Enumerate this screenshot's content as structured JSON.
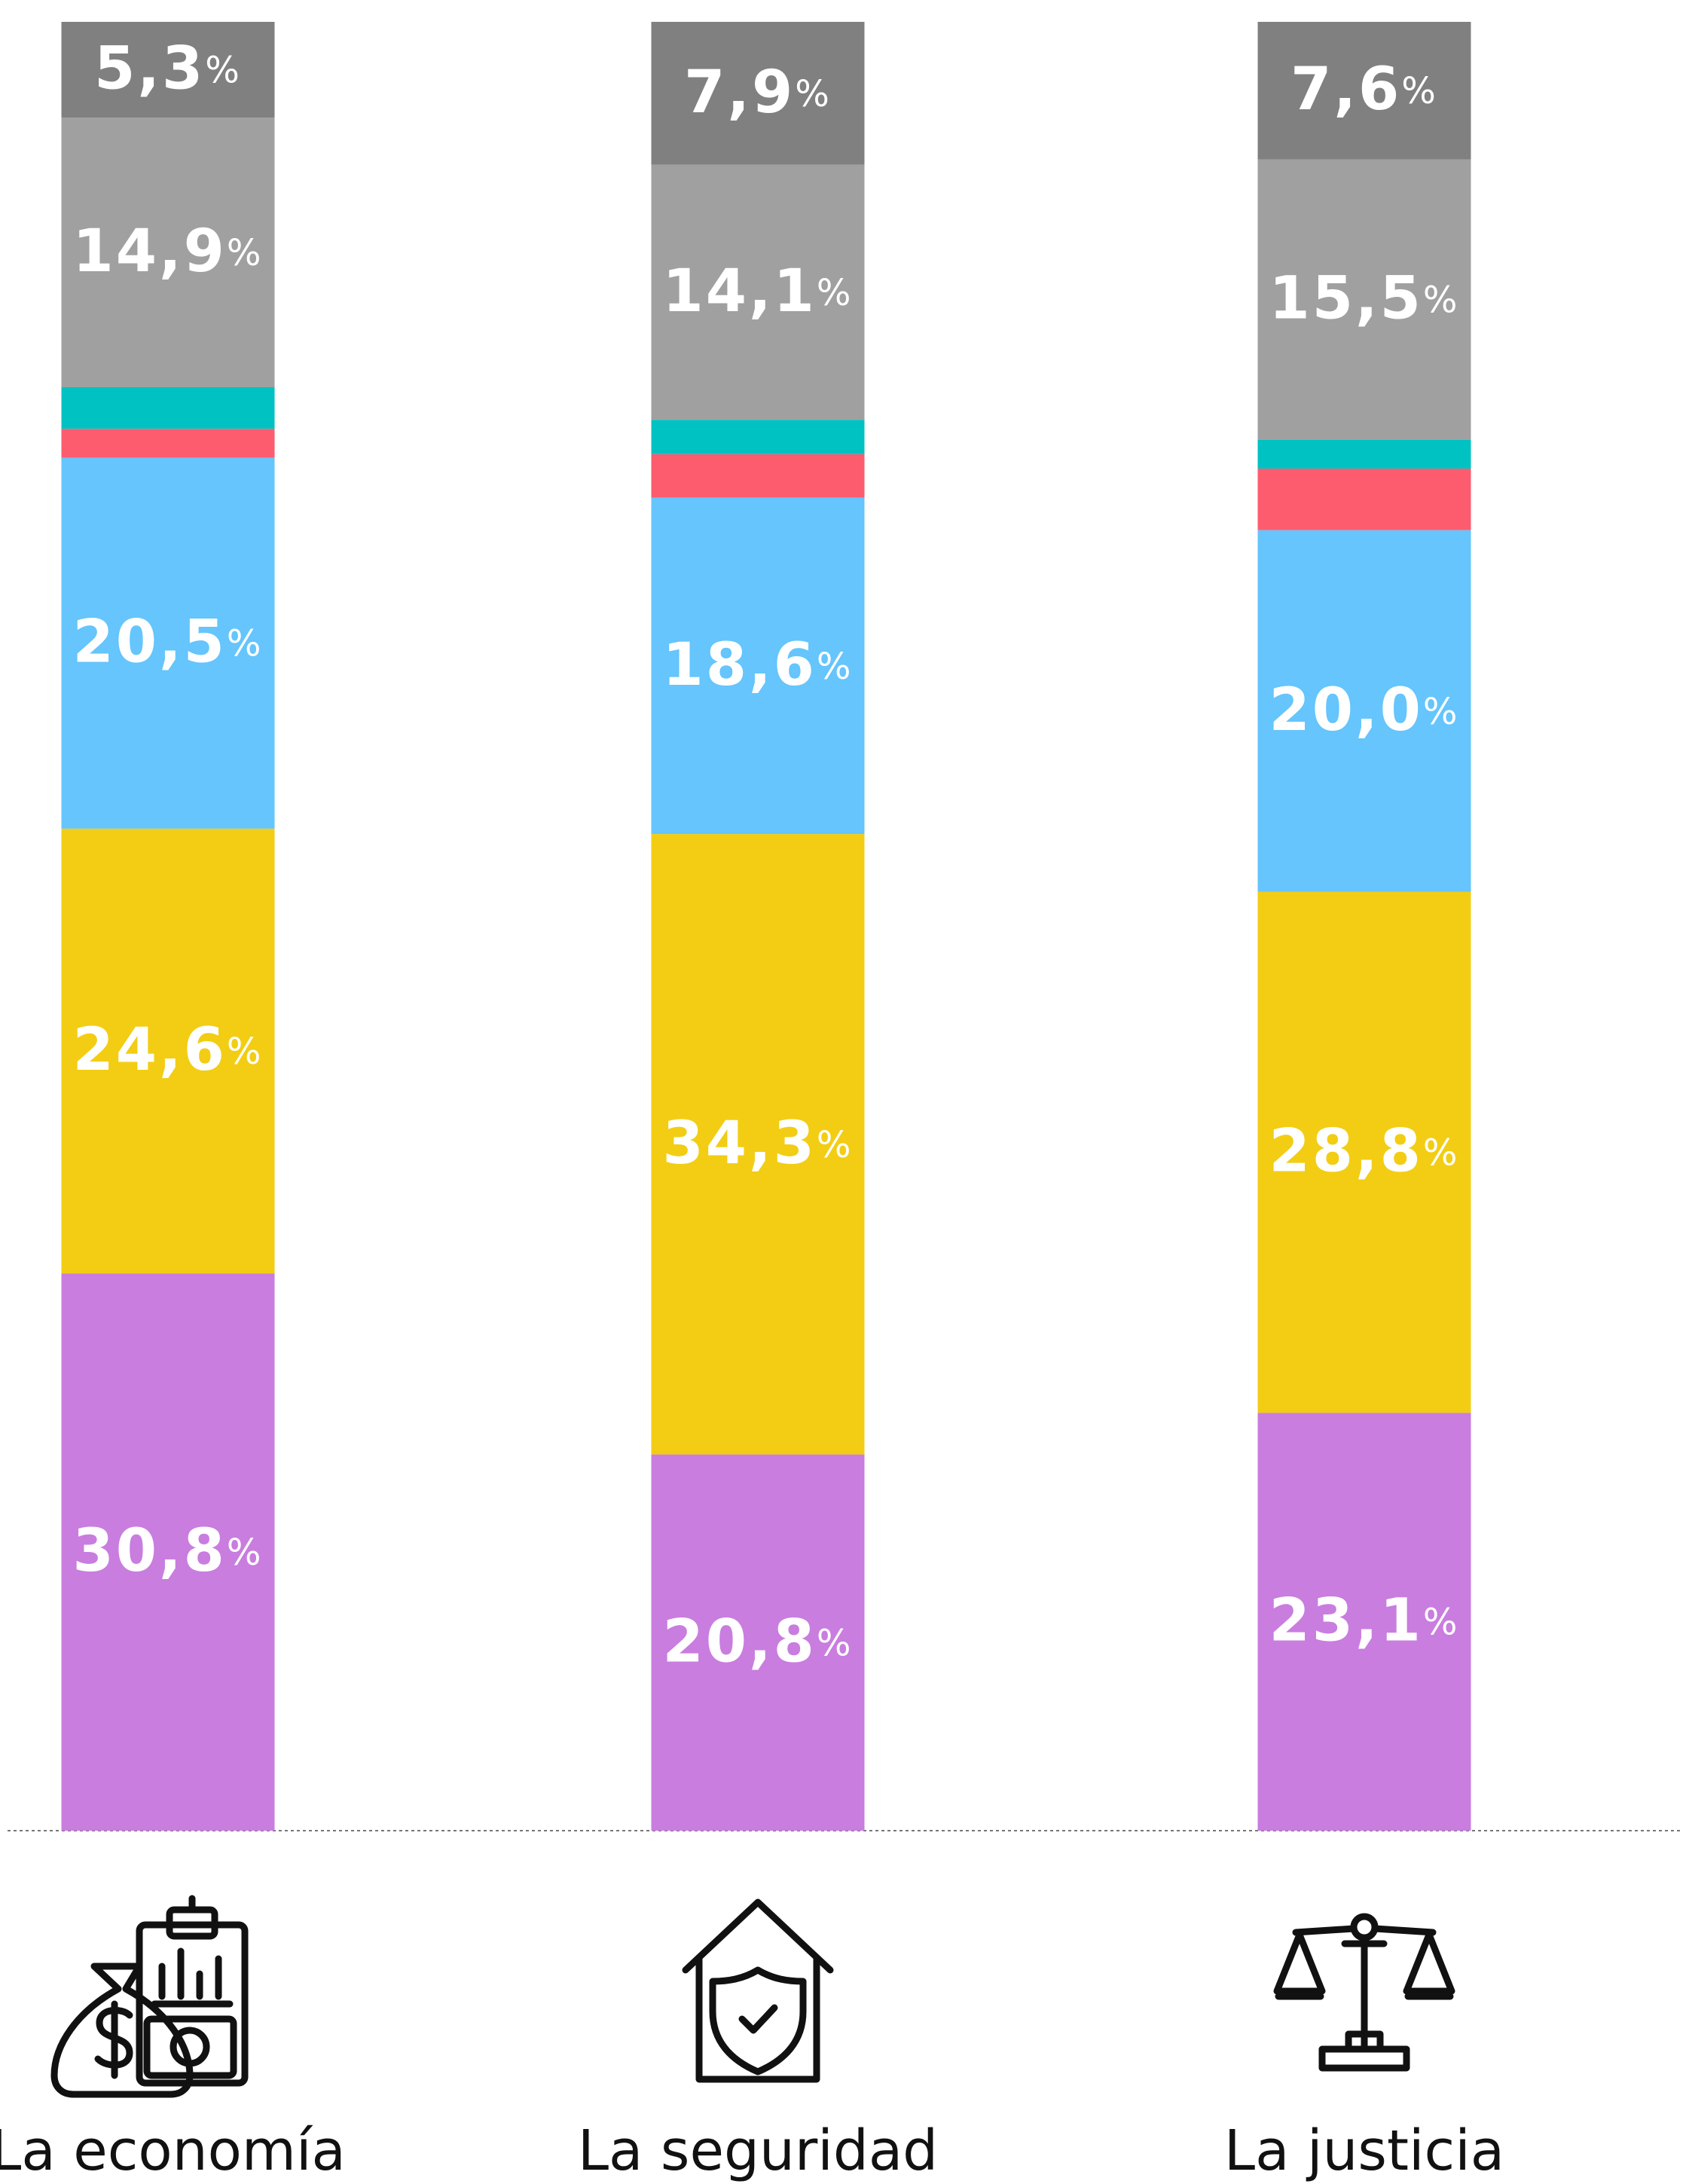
{
  "chart_data": {
    "type": "stacked-bar",
    "categories": [
      "La economía",
      "La seguridad",
      "La justicia"
    ],
    "ylim": [
      0,
      100
    ],
    "series": [
      {
        "color": "#c97ddf",
        "values": [
          30.8,
          20.8,
          23.1
        ],
        "value_labels": [
          "30,8%",
          "20,8%",
          "23,1%"
        ]
      },
      {
        "color": "#f2cd14",
        "values": [
          24.6,
          34.3,
          28.8
        ],
        "value_labels": [
          "24,6%",
          "34,3%",
          "28,8%"
        ]
      },
      {
        "color": "#65c5fc",
        "values": [
          20.5,
          18.6,
          20.0
        ],
        "value_labels": [
          "20,5%",
          "18,6%",
          "20,0%"
        ]
      },
      {
        "color": "#fd5c6e",
        "values": [
          1.6,
          2.4,
          3.4
        ]
      },
      {
        "color": "#00c2c2",
        "values": [
          2.3,
          1.9,
          1.6
        ]
      },
      {
        "color": "#a0a0a0",
        "values": [
          14.9,
          14.1,
          15.5
        ],
        "value_labels": [
          "14,9%",
          "14,1%",
          "15,5%"
        ]
      },
      {
        "color": "#808080",
        "values": [
          5.3,
          7.9,
          7.6
        ],
        "value_labels": [
          "5,3%",
          "7,9%",
          "7,6%"
        ]
      }
    ]
  }
}
